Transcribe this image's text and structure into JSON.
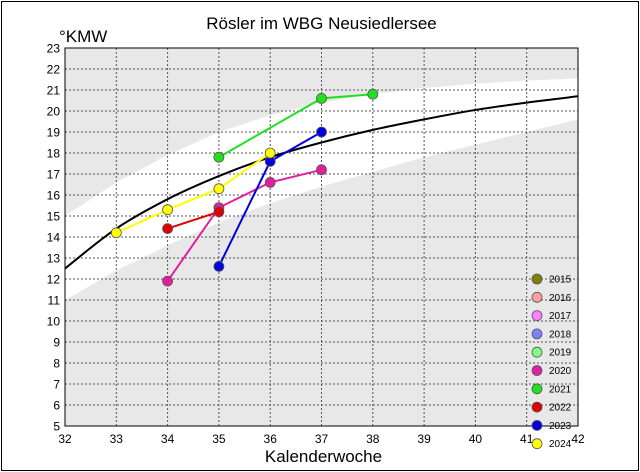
{
  "chart_data": {
    "type": "line",
    "title": "Rösler im WBG Neusiedlersee",
    "xlabel": "Kalenderwoche",
    "ylabel": "°KMW",
    "xlim": [
      32,
      42
    ],
    "ylim": [
      5,
      23
    ],
    "xticks": [
      32,
      33,
      34,
      35,
      36,
      37,
      38,
      39,
      40,
      41,
      42
    ],
    "yticks": [
      5,
      6,
      7,
      8,
      9,
      10,
      11,
      12,
      13,
      14,
      15,
      16,
      17,
      18,
      19,
      20,
      21,
      22,
      23
    ],
    "grid": true,
    "legend_position": "bottom-right",
    "reference_curve": {
      "x": [
        32,
        33,
        34,
        35,
        36,
        37,
        38,
        39,
        40,
        41,
        42
      ],
      "y": [
        12.5,
        14.4,
        15.8,
        16.9,
        17.8,
        18.5,
        19.1,
        19.6,
        20.05,
        20.4,
        20.7
      ]
    },
    "band_upper": {
      "x": [
        32,
        33,
        34,
        35,
        36,
        37,
        38,
        39,
        40,
        41,
        42
      ],
      "y": [
        15.0,
        16.6,
        17.9,
        19.0,
        19.8,
        20.4,
        20.8,
        21.1,
        21.3,
        21.45,
        21.55
      ]
    },
    "band_lower": {
      "x": [
        32,
        33,
        34,
        35,
        36,
        37,
        38,
        39,
        40,
        41,
        42
      ],
      "y": [
        11.0,
        12.4,
        13.6,
        14.7,
        15.6,
        16.4,
        17.1,
        17.8,
        18.4,
        19.0,
        19.6
      ]
    },
    "series": [
      {
        "name": "2015",
        "color": "#808000",
        "x": [],
        "y": []
      },
      {
        "name": "2016",
        "color": "#ffa0a0",
        "x": [],
        "y": []
      },
      {
        "name": "2017",
        "color": "#ff80ff",
        "x": [],
        "y": []
      },
      {
        "name": "2018",
        "color": "#8080ff",
        "x": [],
        "y": []
      },
      {
        "name": "2019",
        "color": "#80ff80",
        "x": [],
        "y": []
      },
      {
        "name": "2020",
        "color": "#e020a0",
        "x": [
          34,
          35,
          36,
          37
        ],
        "y": [
          11.9,
          15.4,
          16.6,
          17.2
        ]
      },
      {
        "name": "2021",
        "color": "#20e020",
        "x": [
          35,
          37,
          38
        ],
        "y": [
          17.8,
          20.6,
          20.8
        ]
      },
      {
        "name": "2022",
        "color": "#e00000",
        "x": [
          34,
          35
        ],
        "y": [
          14.4,
          15.2
        ]
      },
      {
        "name": "2023",
        "color": "#0000e0",
        "x": [
          35,
          36,
          37
        ],
        "y": [
          12.6,
          17.6,
          19.0
        ]
      },
      {
        "name": "2024",
        "color": "#ffff00",
        "x": [
          33,
          34,
          35,
          36
        ],
        "y": [
          14.2,
          15.3,
          16.3,
          18.0
        ]
      }
    ]
  }
}
